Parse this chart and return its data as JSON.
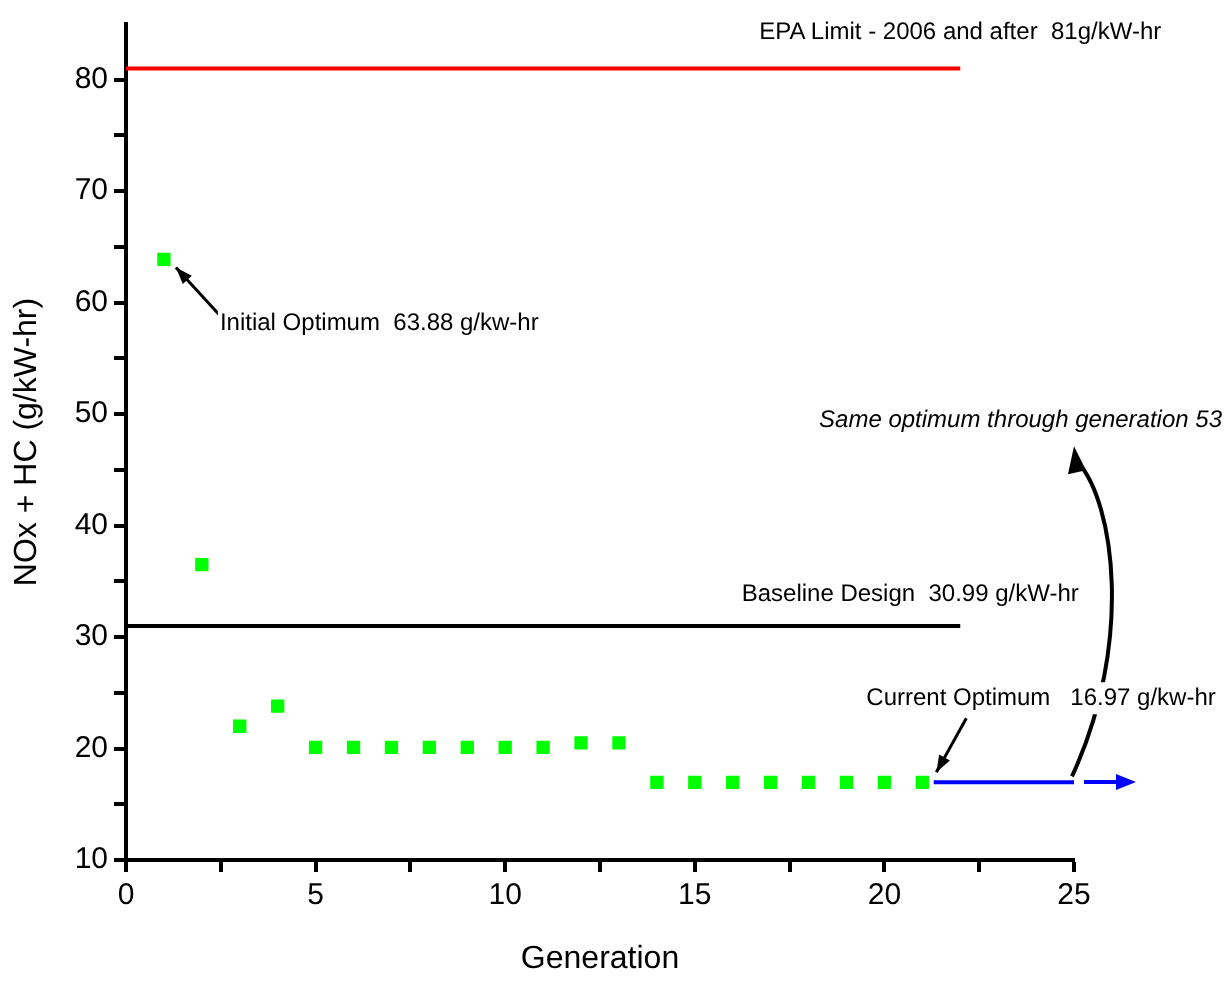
{
  "chart_data": {
    "type": "scatter",
    "xlabel": "Generation",
    "ylabel": "NOx + HC (g/kW-hr)",
    "x": [
      1,
      2,
      3,
      4,
      5,
      6,
      7,
      8,
      9,
      10,
      11,
      12,
      13,
      14,
      15,
      16,
      17,
      18,
      19,
      20,
      21
    ],
    "series": [
      {
        "color": "#00ff00",
        "values": [
          63.88,
          36.5,
          22,
          23.8,
          20.1,
          20.1,
          20.1,
          20.1,
          20.1,
          20.1,
          20.1,
          20.5,
          20.5,
          16.97,
          16.97,
          16.97,
          16.97,
          16.97,
          16.97,
          16.97,
          16.97
        ]
      },
      {
        "type": "line",
        "marker": "none",
        "color": "#ff0000",
        "x": [
          0,
          22
        ],
        "values": [
          81,
          81
        ]
      },
      {
        "type": "line",
        "marker": "none",
        "color": "#000000",
        "x": [
          0,
          22
        ],
        "values": [
          30.99,
          30.99
        ]
      },
      {
        "type": "line",
        "marker": "none",
        "color": "#0000ff",
        "x": [
          21.3,
          25
        ],
        "values": [
          16.97,
          16.97
        ]
      }
    ],
    "xlim": [
      0,
      25
    ],
    "xticks": [
      0,
      {
        "value": 2.5,
        "label": null
      },
      5,
      {
        "value": 7.5,
        "label": null
      },
      10,
      {
        "value": 12.5,
        "label": null
      },
      15,
      {
        "value": 17.5,
        "label": null
      },
      20,
      {
        "value": 22.5,
        "label": null
      },
      25
    ],
    "ylim": [
      10,
      85
    ],
    "yticks": [
      10,
      {
        "value": 15,
        "label": null
      },
      20,
      {
        "value": 25,
        "label": null
      },
      30,
      {
        "value": 35,
        "label": null
      },
      40,
      {
        "value": 45,
        "label": null
      },
      50,
      {
        "value": 55,
        "label": null
      },
      60,
      {
        "value": 65,
        "label": null
      },
      70,
      {
        "value": 75,
        "label": null
      },
      80
    ],
    "marker": "square",
    "grid": false,
    "legend": false,
    "annotations": [
      {
        "text": "EPA Limit - 2006 and after  81g/kW-hr",
        "x": 22,
        "y": 81
      },
      {
        "text": "Baseline Design  30.99 g/kW-hr",
        "x": 22,
        "y": 30.99
      },
      {
        "text": "Initial Optimum  63.88 g/kw-hr",
        "x": 1,
        "y": 63.88
      },
      {
        "text": "Current Optimum   16.97 g/kw-hr",
        "x": 21,
        "y": 16.97
      },
      "Same optimum through generation 53"
    ]
  }
}
